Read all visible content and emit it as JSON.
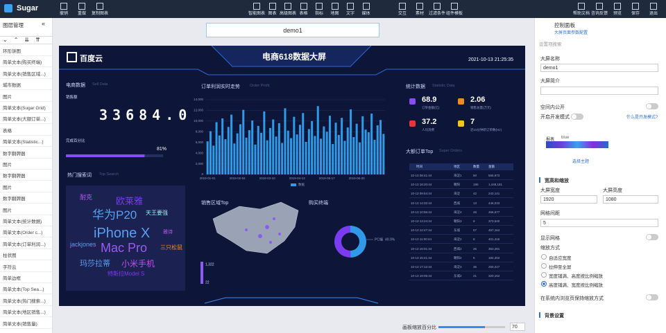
{
  "app": {
    "logo": "Sugar"
  },
  "toolbar": {
    "left": [
      "撤销",
      "重做",
      "复制图表"
    ],
    "center": [
      "智能图表",
      "图表",
      "高级图表",
      "表格",
      "指标",
      "地图",
      "文字",
      "媒体"
    ],
    "center2": [
      "交互",
      "素材",
      "过滤条件",
      "组件模板"
    ],
    "right": [
      "帮助文档",
      "咨询反馈",
      "预览",
      "保存",
      "退出"
    ]
  },
  "layers": {
    "title": "图层管理",
    "items": [
      "环形饼图",
      "简单文本(购买终端)",
      "简单文本(销售区域...)",
      "城市数据",
      "图片",
      "简单文本(Sugar Grid)",
      "简单文本(大额订单...)",
      "表格",
      "简单文本(Statistic...)",
      "数字翻牌器",
      "图片",
      "数字翻牌器",
      "图片",
      "数字翻牌器",
      "图片",
      "简单文本(统计数据)",
      "简单文本(Order c...)",
      "简单文本(订单利润...)",
      "柱状图",
      "字符云",
      "简单边框",
      "简单文本(Top Sea...)",
      "简单文本(热门搜索...)",
      "简单文本(地区销售...)",
      "简单文本(销售量)"
    ]
  },
  "canvas": {
    "name": "demo1",
    "zoom_label": "画板缩放百分比",
    "zoom": 70
  },
  "dashboard": {
    "brand": "百度云",
    "title": "电商618数据大屏",
    "time": "2021-10-13 21:25:35",
    "sell": {
      "title": "电商数据",
      "subtitle": "Sell Data",
      "label": "销售额",
      "number": "33684.0",
      "progress_label": "完成百分比",
      "progress": 81,
      "progress_text": "81%"
    },
    "trend": {
      "title": "订单利润实时走势",
      "subtitle": "Order Profit"
    },
    "stats": {
      "title": "统计数据",
      "subtitle": "Statistic Data",
      "items": [
        {
          "value": "68.9",
          "label": "订单金额(亿)",
          "color": "#8a4cf0"
        },
        {
          "value": "2.06",
          "label": "销售总量(万元)",
          "color": "#f08a24"
        },
        {
          "value": "37.2",
          "label": "人均消费",
          "color": "#e8343a"
        },
        {
          "value": "7",
          "label": "近10分钟新订单数(Hz)",
          "color": "#f5c518"
        }
      ]
    },
    "search": {
      "title": "热门搜索词",
      "subtitle": "Top Search",
      "words": [
        "耐克",
        "欧莱雅",
        "华为P20",
        "天王要强",
        "iPhone X",
        "雅诗",
        "jackjones",
        "Mac Pro",
        "三只松鼠",
        "玛莎拉蒂",
        "小米手机",
        "特斯拉Model S"
      ]
    },
    "region": {
      "title": "销售区域Top",
      "legend": [
        "1,322",
        "22"
      ]
    },
    "terminal": {
      "title": "购买终端"
    },
    "orders": {
      "title": "大额订单Top",
      "subtitle": "Super Orders",
      "columns": [
        "时间",
        "地区",
        "数量",
        "金额"
      ],
      "rows": [
        [
          "10-13 08:41:44",
          "海淀1",
          "50",
          "556,673"
        ],
        [
          "10-13 18:20:44",
          "朝阳",
          "180",
          "1,448,181"
        ],
        [
          "10-13 09:54:44",
          "海淀",
          "42",
          "242,141"
        ],
        [
          "10-13 14:32:44",
          "西城",
          "13",
          "446,033"
        ],
        [
          "10-13 10:56:44",
          "海淀4",
          "48",
          "456,677"
        ],
        [
          "10-13 13:24:44",
          "朝阳3",
          "9",
          "373,540"
        ],
        [
          "10-13 12:47:44",
          "东城",
          "57",
          "457,164"
        ],
        [
          "10-13 11:00:44",
          "海淀2",
          "8",
          "401,416"
        ],
        [
          "10-13 16:01:44",
          "西城2",
          "26",
          "353,281"
        ],
        [
          "10-13 15:41:44",
          "朝阳2",
          "5",
          "182,402"
        ],
        [
          "10-13 17:12:44",
          "海淀3",
          "36",
          "250,227"
        ],
        [
          "10-13 19:05:44",
          "东城2",
          "21",
          "320,152"
        ]
      ]
    }
  },
  "panel": {
    "title": "控制面板",
    "subtitle": "大屏页面参数配置",
    "search": "设置项搜索",
    "name_label": "大屏名称",
    "name": "demo1",
    "intro_label": "大屏简介",
    "public": "空间内公开",
    "dev": "开启开发模式",
    "dev_help": "什么是开发模式?",
    "theme_label": "报表",
    "theme": "blue",
    "theme_btn": "选择主题",
    "size_title": "宽高和缩放",
    "width_label": "大屏宽度",
    "width": "1920",
    "height_label": "大屏高度",
    "height": "1080",
    "grid_label": "网格间距",
    "grid": "5",
    "show_grid": "显示网格",
    "scale_label": "缩放方式",
    "scale_options": [
      "自适应宽度",
      "拉伸至全屏",
      "宽度铺满、高度按比例缩放",
      "高度铺满、宽度按比例缩放"
    ],
    "scale_selected": 3,
    "keep": "在系统内浏览页保持缩放方式",
    "bg": "背景设置"
  },
  "chart_data": [
    {
      "type": "bar",
      "legend": "数据",
      "color": "#2f9be8",
      "categories": [
        "2019-01-01",
        null,
        null,
        null,
        null,
        null,
        null,
        null,
        null,
        null,
        "2019-02-04",
        null,
        null,
        null,
        null,
        null,
        null,
        null,
        null,
        null,
        "2019-03-10",
        null,
        null,
        null,
        null,
        null,
        null,
        null,
        null,
        null,
        "2019-04-13",
        null,
        null,
        null,
        null,
        null,
        null,
        null,
        null,
        null,
        "2019-05-17",
        null,
        null,
        null,
        null,
        null,
        null,
        null,
        null,
        null,
        "2019-06-20",
        null,
        null,
        null,
        null,
        null,
        null,
        null,
        null,
        null
      ],
      "values": [
        6200,
        8100,
        5400,
        9800,
        7300,
        10500,
        6600,
        8900,
        11200,
        5800,
        7700,
        9400,
        12100,
        6900,
        8300,
        10100,
        5600,
        9100,
        7800,
        11800,
        6400,
        8700,
        10300,
        7100,
        9600,
        5900,
        12400,
        8200,
        6800,
        10800,
        7500,
        9300,
        11500,
        6100,
        8500,
        10000,
        7200,
        12800,
        6700,
        9000,
        8000,
        11000,
        5700,
        9700,
        7400,
        10600,
        6300,
        8800,
        12200,
        7000,
        9500,
        6000,
        10900,
        8400,
        7900,
        11400,
        6500,
        9200,
        10200,
        7600
      ],
      "ylim": [
        0,
        14000
      ],
      "yticks": [
        0,
        {
          "value": 2000,
          "label": "2,000"
        },
        {
          "value": 4000,
          "label": "4,000"
        },
        {
          "value": 6000,
          "label": "6,000"
        },
        {
          "value": 8000,
          "label": "8,000"
        },
        {
          "value": 10000,
          "label": "10,000"
        },
        {
          "value": 12000,
          "label": "12,000"
        },
        {
          "value": 14000,
          "label": "14,000"
        }
      ],
      "grid": true
    },
    {
      "type": "pie",
      "categories": [
        "PC端",
        null
      ],
      "values": [
        49.9,
        50.1
      ],
      "value_labels": [
        "49.9%",
        null
      ],
      "colors": [
        "#2f9be8",
        "#7a3cf0"
      ]
    }
  ]
}
